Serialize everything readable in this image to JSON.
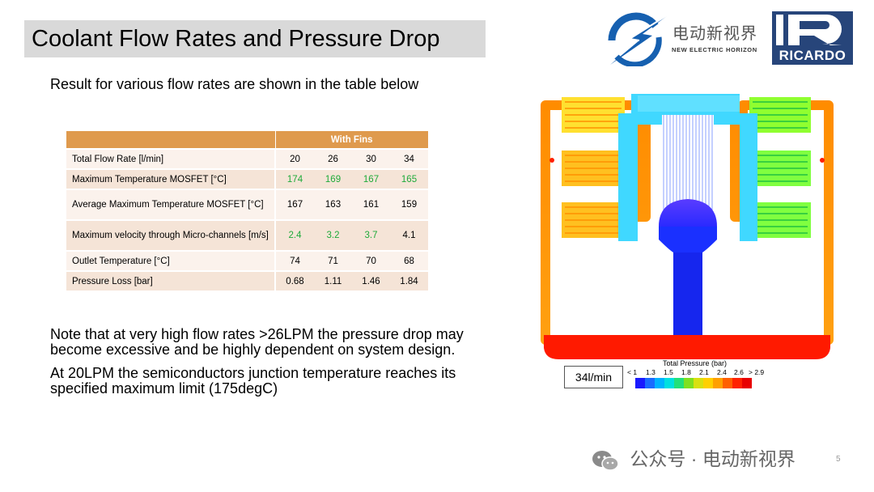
{
  "slide": {
    "title": "Coolant Flow Rates and Pressure Drop",
    "subtitle": "Result for various flow rates are shown in the table below",
    "page_number": "5"
  },
  "logos": {
    "brand_cn": "电动新视界",
    "brand_en": "NEW ELECTRIC HORIZON",
    "ricardo": "RICARDO"
  },
  "table": {
    "group_header": "With Fins",
    "rows": [
      {
        "label": "Total Flow Rate  [l/min]",
        "values": [
          "20",
          "26",
          "30",
          "34"
        ]
      },
      {
        "label": "Maximum Temperature MOSFET  [°C]",
        "values": [
          "174",
          "169",
          "167",
          "165"
        ]
      },
      {
        "label": "Average Maximum Temperature MOSFET [°C]",
        "values": [
          "167",
          "163",
          "161",
          "159"
        ]
      },
      {
        "label": "Maximum velocity through Micro-channels [m/s]",
        "values": [
          "2.4",
          "3.2",
          "3.7",
          "4.1"
        ]
      },
      {
        "label": "Outlet Temperature [°C]",
        "values": [
          "74",
          "71",
          "70",
          "68"
        ]
      },
      {
        "label": "Pressure Loss [bar]",
        "values": [
          "0.68",
          "1.11",
          "1.46",
          "1.84"
        ]
      }
    ],
    "highlight_color": "#1faa3a"
  },
  "notes": [
    "Note that at very high flow rates >26LPM the pressure drop may become excessive and be highly dependent on system design.",
    "At 20LPM the semiconductors junction temperature reaches its specified maximum limit (175degC)"
  ],
  "simulation": {
    "flow_label": "34l/min",
    "legend_title": "Total Pressure (bar)",
    "legend_ticks": [
      "< 1",
      "1.3",
      "1.5",
      "1.8",
      "2.1",
      "2.4",
      "2.6",
      "> 2.9"
    ],
    "legend_colors": [
      "#1a1aff",
      "#1a6bff",
      "#00b3ff",
      "#00e0e0",
      "#22e07a",
      "#7fe020",
      "#d8e010",
      "#ffd000",
      "#ffa000",
      "#ff6000",
      "#ff2200",
      "#e80000"
    ]
  },
  "watermark": {
    "text": "公众号 · 电动新视界"
  }
}
